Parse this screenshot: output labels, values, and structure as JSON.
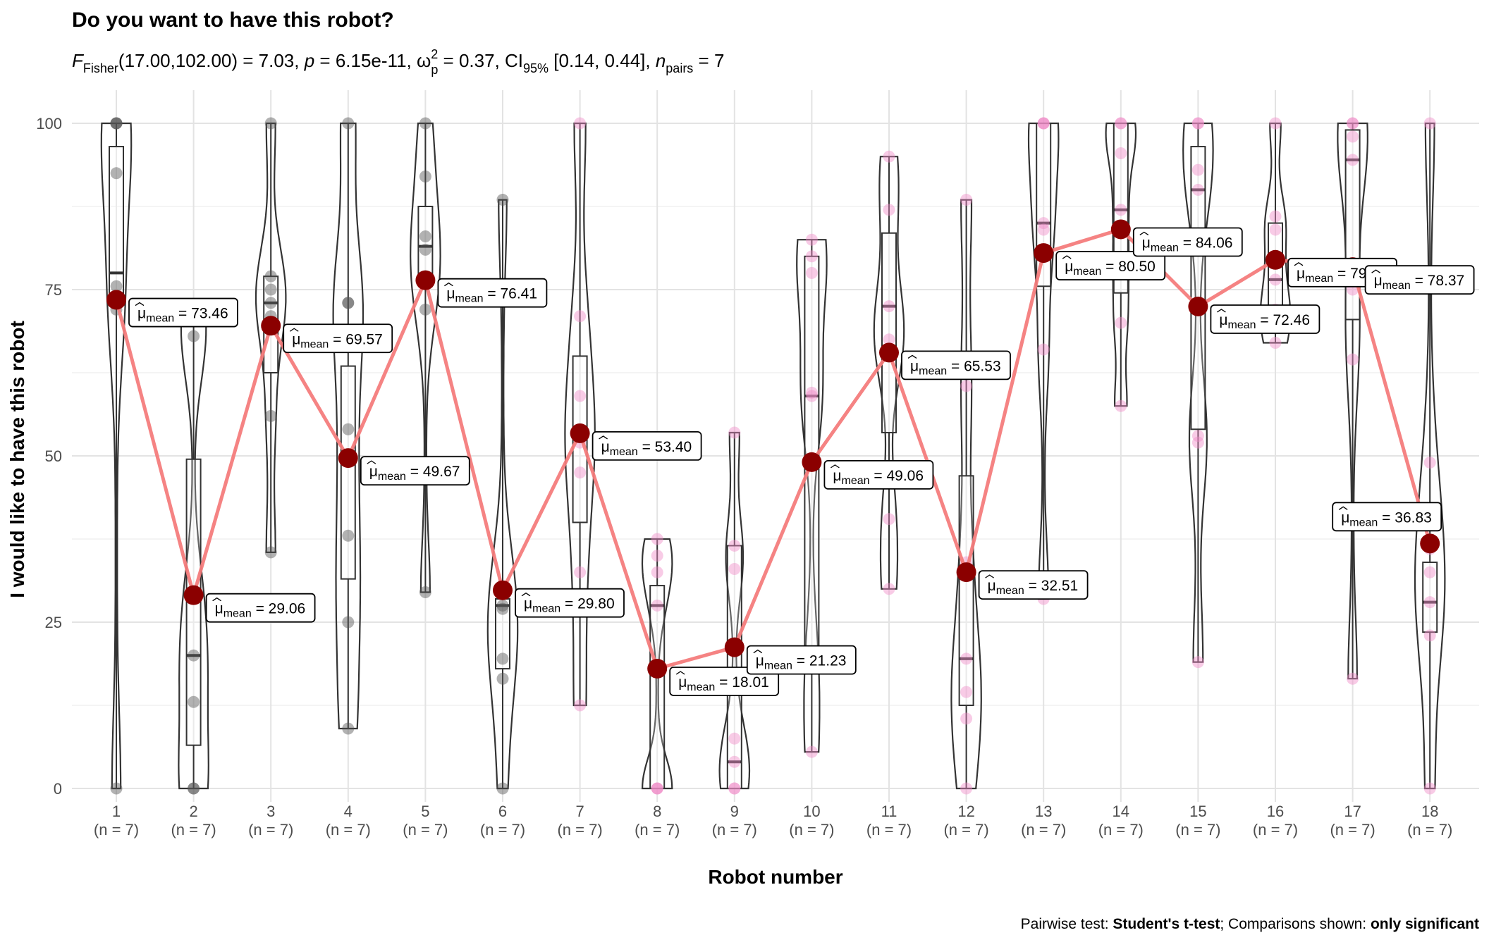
{
  "chart_data": {
    "type": "violin-box-scatter",
    "title": "Do you want to have this robot?",
    "subtitle": {
      "stat_symbol": "F",
      "stat_subscript": "Fisher",
      "stat_args": "(17.00,102.00) = 7.03, ",
      "p_text": "p",
      "p_value": " = 6.15e-11, ",
      "effect_symbol": "ω",
      "effect_sup": "2",
      "effect_sub": "p",
      "effect_value": " = 0.37, CI",
      "ci_sub": "95%",
      "ci_value": " [0.14, 0.44], ",
      "n_text": "n",
      "n_sub": "pairs",
      "n_value": " = 7"
    },
    "xlabel": "Robot number",
    "ylabel": "I would like to have this robot",
    "ylim": [
      0,
      100
    ],
    "yticks": [
      0,
      25,
      50,
      75,
      100
    ],
    "grid": true,
    "categories": [
      "1",
      "2",
      "3",
      "4",
      "5",
      "6",
      "7",
      "8",
      "9",
      "10",
      "11",
      "12",
      "13",
      "14",
      "15",
      "16",
      "17",
      "18"
    ],
    "n_labels": [
      "(n = 7)",
      "(n = 7)",
      "(n = 7)",
      "(n = 7)",
      "(n = 7)",
      "(n = 7)",
      "(n = 7)",
      "(n = 7)",
      "(n = 7)",
      "(n = 7)",
      "(n = 7)",
      "(n = 7)",
      "(n = 7)",
      "(n = 7)",
      "(n = 7)",
      "(n = 7)",
      "(n = 7)",
      "(n = 7)"
    ],
    "means": [
      73.46,
      29.06,
      69.57,
      49.67,
      76.41,
      29.8,
      53.4,
      18.01,
      21.23,
      49.06,
      65.53,
      32.51,
      80.5,
      84.06,
      72.46,
      79.47,
      78.37,
      36.83
    ],
    "mean_labels": [
      "73.46",
      "29.06",
      "69.57",
      "49.67",
      "76.41",
      "29.80",
      "53.40",
      "18.01",
      "21.23",
      "49.06",
      "65.53",
      "32.51",
      "80.50",
      "84.06",
      "72.46",
      "79.47",
      "78.37",
      "36.83"
    ],
    "mean_label_prefix": "μ",
    "mean_label_sub": "mean",
    "mean_label_eq": " = ",
    "label_side": [
      "right",
      "right",
      "right",
      "right",
      "right",
      "right",
      "right",
      "right",
      "right",
      "right",
      "right",
      "right",
      "right",
      "right",
      "right",
      "right",
      "right",
      "left"
    ],
    "points": [
      [
        0,
        100,
        100,
        92.5,
        75.5,
        72,
        100
      ],
      [
        0,
        0,
        13,
        20,
        29,
        68,
        70.5
      ],
      [
        35.5,
        56,
        71,
        73,
        77,
        100,
        75
      ],
      [
        9,
        25,
        38,
        54,
        73,
        73,
        100
      ],
      [
        29.5,
        72,
        81,
        83,
        92,
        100,
        77
      ],
      [
        0,
        16.5,
        19.5,
        27,
        27.5,
        88.5,
        29.5
      ],
      [
        12.5,
        32.5,
        47.5,
        52,
        59,
        71,
        100
      ],
      [
        0,
        0,
        27.5,
        32.5,
        35,
        37.5,
        0
      ],
      [
        0,
        0,
        4,
        7.5,
        33,
        36.5,
        53.5
      ],
      [
        5.5,
        18.5,
        59,
        59.5,
        77.5,
        80,
        82.5
      ],
      [
        30,
        40.5,
        66,
        72.5,
        87,
        95,
        67.5
      ],
      [
        0,
        10.5,
        14.5,
        19.5,
        60.5,
        88.5,
        34
      ],
      [
        28.5,
        66,
        85,
        100,
        100,
        100,
        84
      ],
      [
        57.5,
        70,
        87,
        95.5,
        100,
        100,
        78.5
      ],
      [
        19,
        53,
        90,
        93,
        100,
        100,
        52
      ],
      [
        67,
        70,
        72,
        76.5,
        84,
        86,
        100
      ],
      [
        16.5,
        64.5,
        94.5,
        98,
        100,
        100,
        75
      ],
      [
        0,
        23,
        28,
        32.5,
        36,
        49,
        100
      ]
    ],
    "boxes": [
      [
        0,
        73,
        77.5,
        96.5,
        100
      ],
      [
        0,
        6.5,
        20,
        49.5,
        70.5
      ],
      [
        35.5,
        62.5,
        73,
        77,
        100
      ],
      [
        9,
        31.5,
        49,
        63.5,
        100
      ],
      [
        29.5,
        76,
        81.5,
        87.5,
        100
      ],
      [
        0,
        18,
        27.5,
        28.5,
        88.5
      ],
      [
        12.5,
        40,
        52.5,
        65,
        100
      ],
      [
        0,
        0,
        27.5,
        30.5,
        37.5
      ],
      [
        0,
        0,
        4,
        36.5,
        53.5
      ],
      [
        5.5,
        18.5,
        59,
        80,
        82.5
      ],
      [
        30,
        53.5,
        72.5,
        83.5,
        95
      ],
      [
        0,
        12.5,
        19.5,
        47,
        88.5
      ],
      [
        28.5,
        75.5,
        85,
        100,
        100
      ],
      [
        57.5,
        74.5,
        87,
        100,
        100
      ],
      [
        19,
        54,
        90,
        96.5,
        100
      ],
      [
        67,
        69,
        76.5,
        85,
        100
      ],
      [
        16.5,
        70.5,
        94.5,
        99,
        100
      ],
      [
        0,
        23.5,
        28,
        34,
        100
      ]
    ],
    "point_colors": [
      "#555555",
      "#555555",
      "#555555",
      "#555555",
      "#555555",
      "#555555",
      "#f08cc8",
      "#f08cc8",
      "#f08cc8",
      "#f08cc8",
      "#f08cc8",
      "#f08cc8",
      "#f08cc8",
      "#f08cc8",
      "#f08cc8",
      "#f08cc8",
      "#f08cc8",
      "#f08cc8"
    ],
    "mean_point_color": "#8b0000",
    "mean_line_color": "#f47c7c",
    "caption": {
      "prefix": "Pairwise test: ",
      "test": "Student's t-test",
      "mid": "; Comparisons shown: ",
      "shown": "only significant"
    }
  }
}
